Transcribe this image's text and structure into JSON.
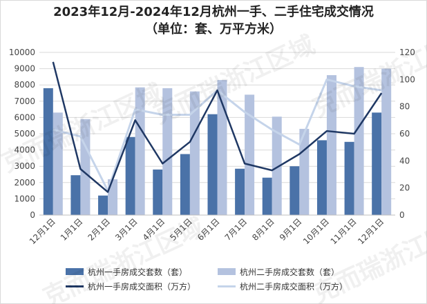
{
  "title": "2023年12月-2024年12月杭州一手、二手住宅成交情况",
  "subtitle": "（单位：套、万平方米）",
  "watermark": "克而瑞浙江区域",
  "colors": {
    "bar1": "#4a72a8",
    "bar2": "#b4c2df",
    "line1": "#1f3864",
    "line2": "#c5d4ea",
    "grid": "#d9d9d9"
  },
  "chart_data": {
    "type": "bar",
    "categories": [
      "12月1日",
      "1月1日",
      "2月1日",
      "3月1日",
      "4月1日",
      "5月1日",
      "6月1日",
      "7月1日",
      "8月1日",
      "9月1日",
      "10月1日",
      "11月1日",
      "12月1日"
    ],
    "left_axis": {
      "ylim": [
        0,
        10000
      ],
      "ticks": [
        "0",
        "1000",
        "2000",
        "3000",
        "4000",
        "5000",
        "6000",
        "7000",
        "8000",
        "9000",
        "10000"
      ]
    },
    "right_axis": {
      "ylim": [
        0,
        120
      ],
      "ticks": [
        "0",
        "20",
        "40",
        "60",
        "80",
        "100",
        "120"
      ]
    },
    "series": [
      {
        "name": "杭州一手房成交套数（套）",
        "kind": "bar",
        "axis": "left",
        "values": [
          7800,
          2450,
          1200,
          4800,
          2800,
          3750,
          6200,
          2850,
          2300,
          3000,
          4600,
          4500,
          6300
        ]
      },
      {
        "name": "杭州二手房成交套数（套）",
        "kind": "bar",
        "axis": "left",
        "values": [
          6300,
          5900,
          2200,
          7850,
          7800,
          7600,
          8300,
          7400,
          6050,
          5300,
          8600,
          9100,
          9000
        ]
      },
      {
        "name": "杭州一手房成交面积（万方）",
        "kind": "line",
        "axis": "right",
        "values": [
          113,
          34,
          17,
          70,
          38,
          54,
          92,
          38,
          33,
          45,
          62,
          60,
          90
        ]
      },
      {
        "name": "杭州二手房成交面积（万方）",
        "kind": "line",
        "axis": "right",
        "values": [
          63,
          58,
          18,
          78,
          74,
          74,
          92,
          76,
          63,
          52,
          100,
          95,
          92
        ]
      }
    ]
  }
}
